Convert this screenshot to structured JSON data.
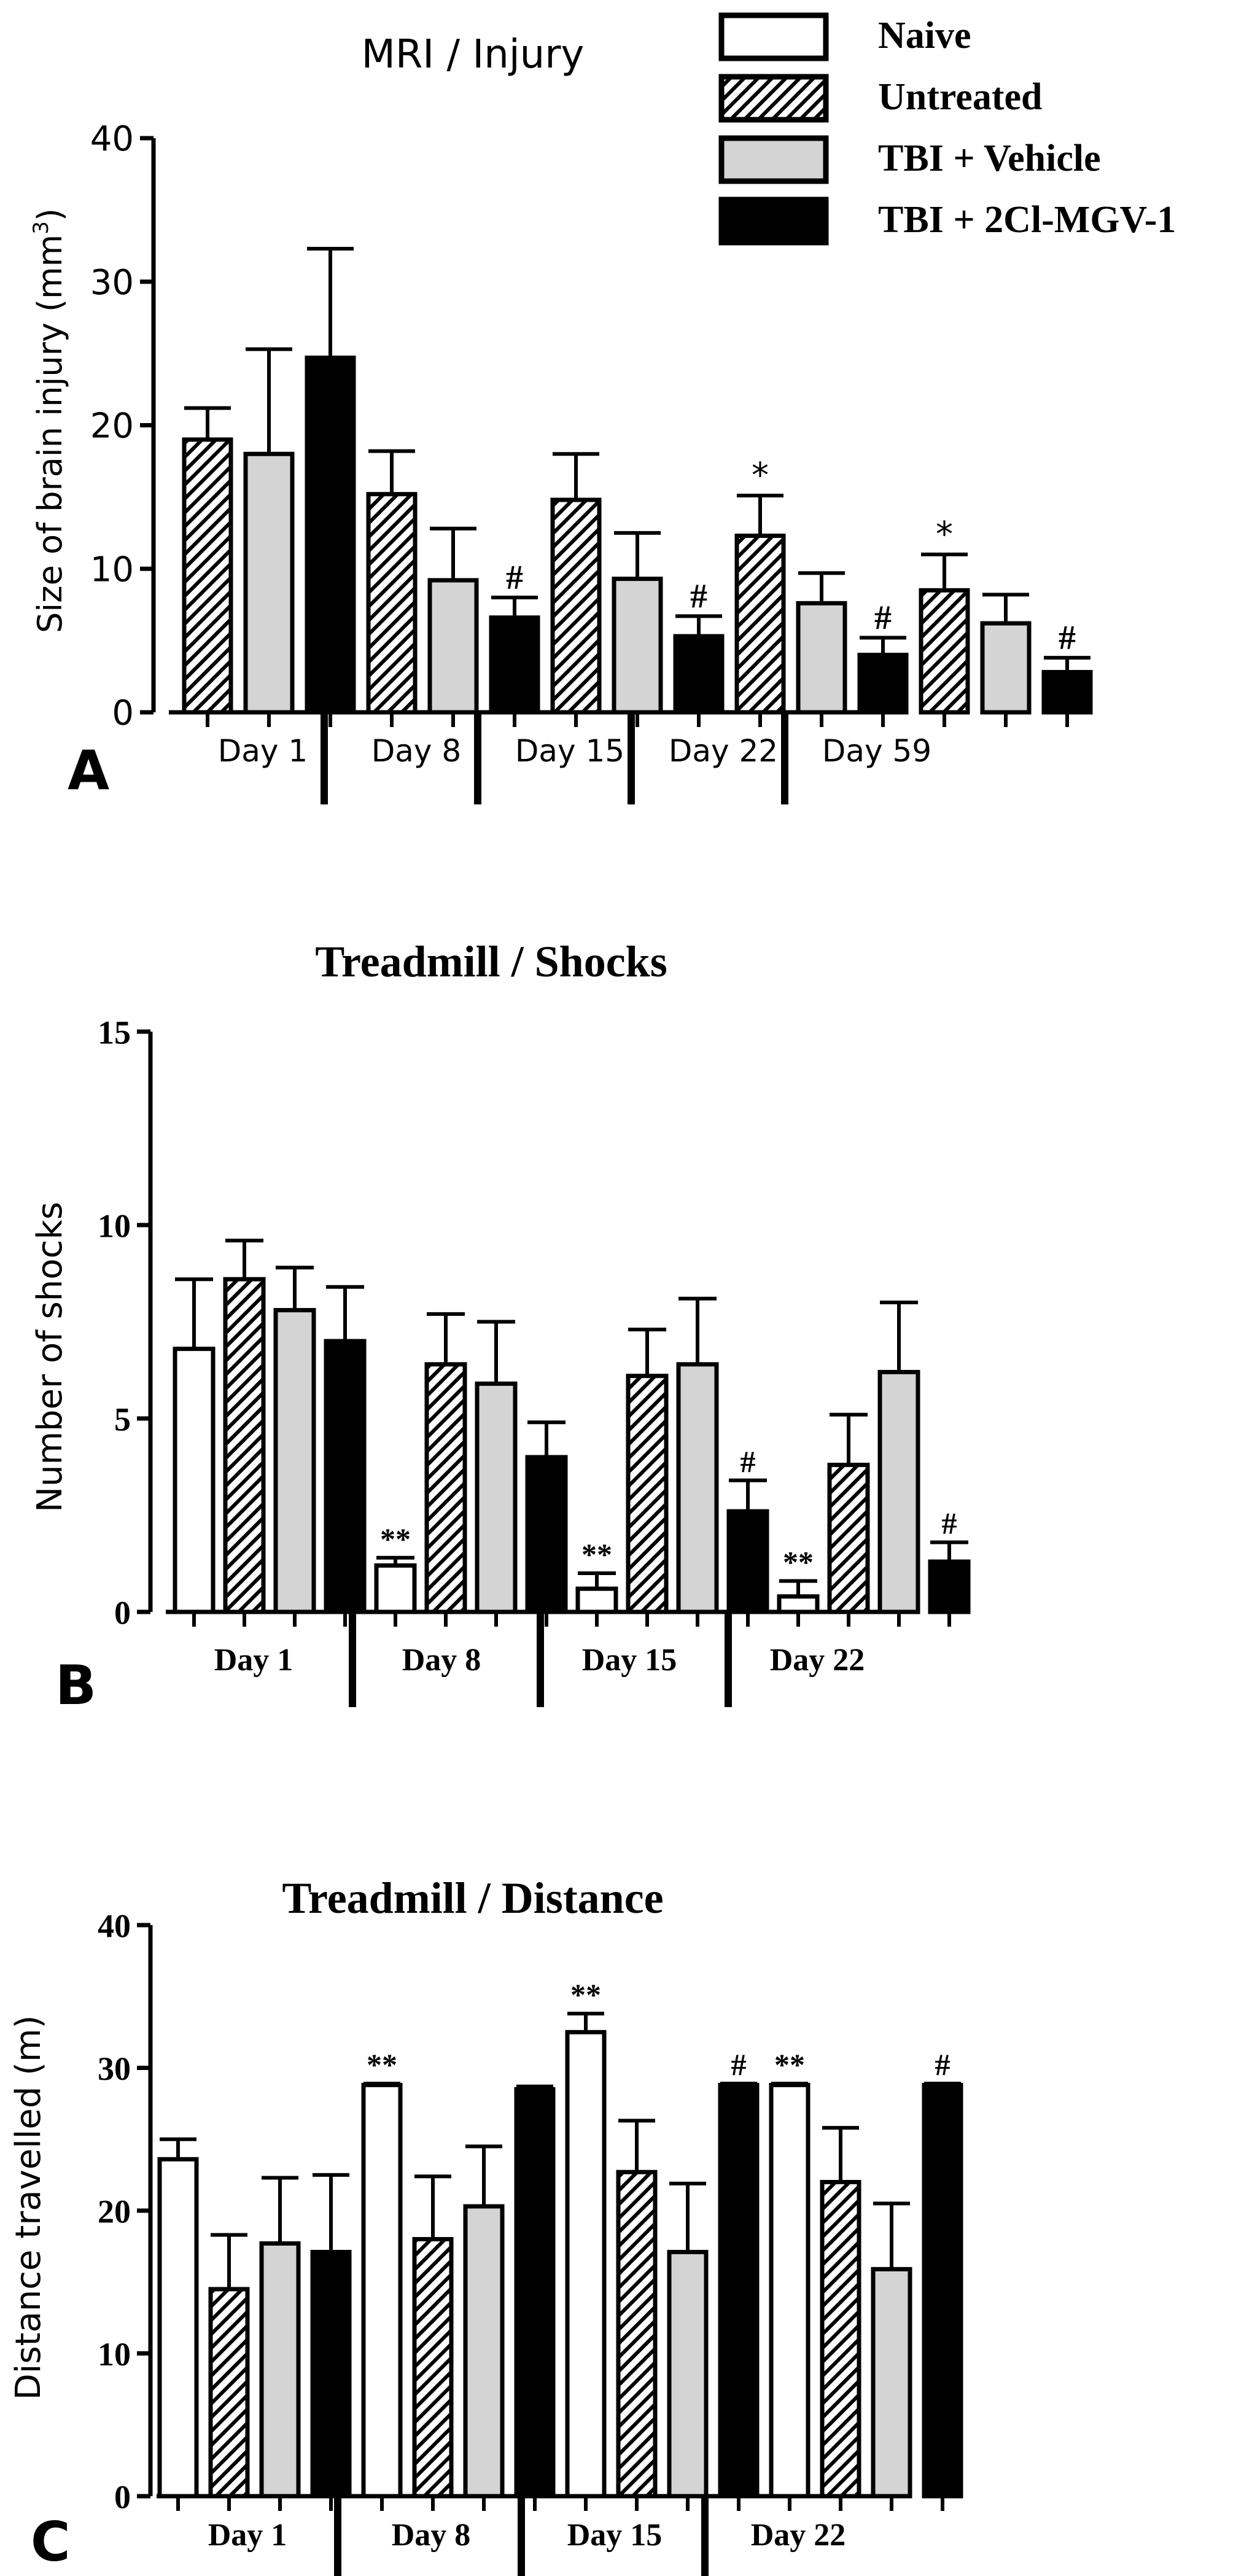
{
  "legend": {
    "entries": [
      {
        "label": "Naive",
        "fill": "white"
      },
      {
        "label": "Untreated",
        "fill": "hatch"
      },
      {
        "label": "TBI + Vehicle",
        "fill": "gray"
      },
      {
        "label": "TBI + 2Cl-MGV-1",
        "fill": "black"
      }
    ]
  },
  "colors": {
    "gray_bar": "#d4d4d4",
    "black_bar": "#000000",
    "axis": "#000000"
  },
  "chart_data": [
    {
      "type": "bar",
      "panel_letter": "A",
      "title": "MRI / Injury",
      "ylabel": "Size of brain injury (mm",
      "ylabel_sup": "3",
      "ylabel_tail": ")",
      "ylim": [
        0,
        40
      ],
      "yticks": [
        0,
        10,
        20,
        30,
        40
      ],
      "ytick_labels": [
        "0",
        "10",
        "20",
        "30",
        "40"
      ],
      "groups": [
        "Day 1",
        "Day 8",
        "Day 15",
        "Day 22",
        "Day 59"
      ],
      "series": [
        {
          "name": "Untreated",
          "fill": "hatch",
          "values": [
            19,
            15.2,
            14.8,
            12.3,
            8.5
          ],
          "errors": [
            2.2,
            3.0,
            3.2,
            2.8,
            2.5
          ],
          "marks": [
            "",
            "",
            "",
            "*",
            "*"
          ]
        },
        {
          "name": "TBI + Vehicle",
          "fill": "gray",
          "values": [
            18,
            9.2,
            9.3,
            7.6,
            6.2
          ],
          "errors": [
            7.3,
            3.6,
            3.2,
            2.1,
            2.0
          ],
          "marks": [
            "",
            "",
            "",
            "",
            ""
          ]
        },
        {
          "name": "TBI + 2Cl-MGV-1",
          "fill": "black",
          "values": [
            24.7,
            6.6,
            5.3,
            4.0,
            2.8
          ],
          "errors": [
            7.6,
            1.4,
            1.4,
            1.2,
            1.0
          ],
          "marks": [
            "",
            "#",
            "#",
            "#",
            "#"
          ]
        }
      ]
    },
    {
      "type": "bar",
      "panel_letter": "B",
      "title": "Treadmill / Shocks",
      "ylabel": "Number of shocks",
      "ylim": [
        0,
        15
      ],
      "yticks": [
        0,
        5,
        10,
        15
      ],
      "ytick_labels": [
        "0",
        "5",
        "10",
        "15"
      ],
      "groups": [
        "Day 1",
        "Day 8",
        "Day 15",
        "Day 22"
      ],
      "series": [
        {
          "name": "Naive",
          "fill": "white",
          "values": [
            6.8,
            1.2,
            0.6,
            0.4
          ],
          "errors": [
            1.8,
            0.2,
            0.4,
            0.4
          ],
          "marks": [
            "",
            "**",
            "**",
            "**"
          ]
        },
        {
          "name": "Untreated",
          "fill": "hatch",
          "values": [
            8.6,
            6.4,
            6.1,
            3.8
          ],
          "errors": [
            1.0,
            1.3,
            1.2,
            1.3
          ],
          "marks": [
            "",
            "",
            "",
            ""
          ]
        },
        {
          "name": "TBI + Vehicle",
          "fill": "gray",
          "values": [
            7.8,
            5.9,
            6.4,
            6.2
          ],
          "errors": [
            1.1,
            1.6,
            1.7,
            1.8
          ],
          "marks": [
            "",
            "",
            "",
            ""
          ]
        },
        {
          "name": "TBI + 2Cl-MGV-1",
          "fill": "black",
          "values": [
            7.0,
            4.0,
            2.6,
            1.3
          ],
          "errors": [
            1.4,
            0.9,
            0.8,
            0.5
          ],
          "marks": [
            "",
            "",
            "#",
            "#"
          ]
        }
      ]
    },
    {
      "type": "bar",
      "panel_letter": "C",
      "title": "Treadmill / Distance",
      "ylabel": "Distance travelled (m)",
      "ylim": [
        0,
        40
      ],
      "yticks": [
        0,
        10,
        20,
        30,
        40
      ],
      "ytick_labels": [
        "0",
        "10",
        "20",
        "30",
        "40"
      ],
      "groups": [
        "Day 1",
        "Day 8",
        "Day 15",
        "Day 22"
      ],
      "series": [
        {
          "name": "Naive",
          "fill": "white",
          "values": [
            23.6,
            28.8,
            32.5,
            28.8
          ],
          "errors": [
            1.4,
            0.1,
            1.3,
            0.1
          ],
          "marks": [
            "",
            "**",
            "**",
            "**"
          ]
        },
        {
          "name": "Untreated",
          "fill": "hatch",
          "values": [
            14.5,
            18.0,
            22.7,
            22.0
          ],
          "errors": [
            3.8,
            4.4,
            3.6,
            3.8
          ],
          "marks": [
            "",
            "",
            "",
            ""
          ]
        },
        {
          "name": "TBI + Vehicle",
          "fill": "gray",
          "values": [
            17.7,
            20.3,
            17.1,
            15.9
          ],
          "errors": [
            4.6,
            4.2,
            4.8,
            4.6
          ],
          "marks": [
            "",
            "",
            "",
            ""
          ]
        },
        {
          "name": "TBI + 2Cl-MGV-1",
          "fill": "black",
          "values": [
            17.1,
            28.5,
            28.8,
            28.8
          ],
          "errors": [
            5.4,
            0.2,
            0.1,
            0.1
          ],
          "marks": [
            "",
            "",
            "#",
            "#"
          ]
        }
      ]
    }
  ]
}
